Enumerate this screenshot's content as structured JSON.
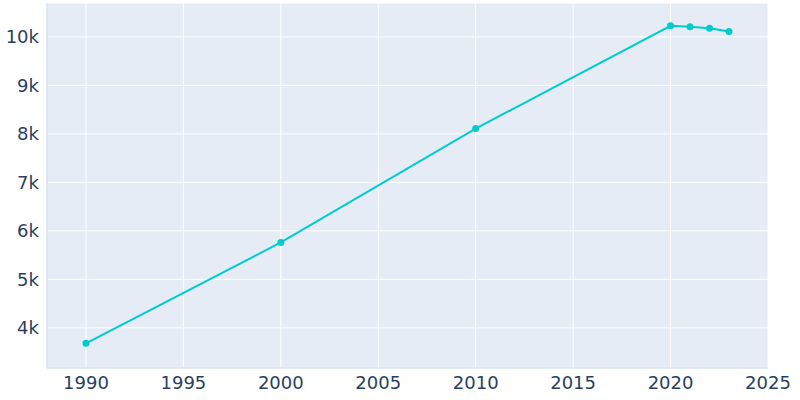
{
  "chart_data": {
    "type": "line",
    "x": [
      1990,
      2000,
      2010,
      2020,
      2021,
      2022,
      2023
    ],
    "values": [
      3680,
      5760,
      8110,
      10230,
      10210,
      10180,
      10110
    ],
    "color": "#00cccc",
    "marker": "circle",
    "xlim": [
      1988,
      2025
    ],
    "xticks": [
      1990,
      1995,
      2000,
      2005,
      2010,
      2015,
      2020,
      2025
    ],
    "ylim": [
      3170,
      10700
    ],
    "yticks": [
      {
        "value": 4000,
        "label": "4k"
      },
      {
        "value": 5000,
        "label": "5k"
      },
      {
        "value": 6000,
        "label": "6k"
      },
      {
        "value": 7000,
        "label": "7k"
      },
      {
        "value": 8000,
        "label": "8k"
      },
      {
        "value": 9000,
        "label": "9k"
      },
      {
        "value": 10000,
        "label": "10k"
      }
    ],
    "grid": true
  }
}
